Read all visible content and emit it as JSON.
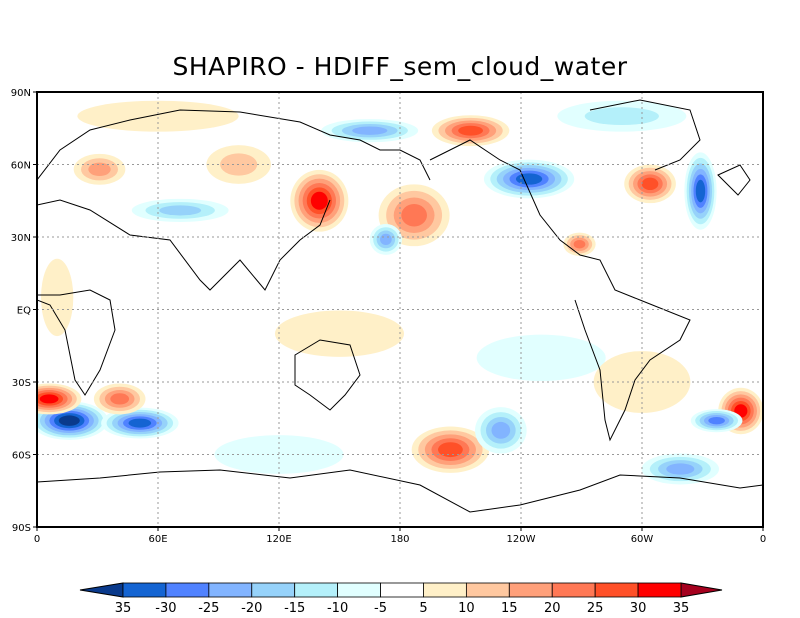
{
  "title": "SHAPIRO - HDIFF_sem_cloud_water",
  "map": {
    "projection": "latlon",
    "lon_range": [
      0,
      360
    ],
    "lat_range": [
      -90,
      90
    ],
    "grid": true,
    "y_ticks": [
      "90N",
      "60N",
      "30N",
      "EQ",
      "30S",
      "60S",
      "90S"
    ],
    "x_ticks": [
      "0",
      "60E",
      "120E",
      "180",
      "120W",
      "60W",
      "0"
    ],
    "features": [
      {
        "lon": 140,
        "lat": 45,
        "rlon": 9,
        "rlat": 8,
        "value": 32
      },
      {
        "lon": 187,
        "lat": 39,
        "rlon": 11,
        "rlat": 8,
        "value": 22
      },
      {
        "lon": 244,
        "lat": 54,
        "rlon": 14,
        "rlat": 5,
        "value": -33
      },
      {
        "lon": 329,
        "lat": 49,
        "rlon": 5,
        "rlat": 10,
        "value": -32
      },
      {
        "lon": 304,
        "lat": 52,
        "rlon": 8,
        "rlat": 5,
        "value": 26
      },
      {
        "lon": 165,
        "lat": 74,
        "rlon": 15,
        "rlat": 3,
        "value": -22
      },
      {
        "lon": 215,
        "lat": 74,
        "rlon": 12,
        "rlat": 4,
        "value": 26
      },
      {
        "lon": 16,
        "lat": -46,
        "rlon": 12,
        "rlat": 5,
        "value": -36
      },
      {
        "lon": 6,
        "lat": -37,
        "rlon": 10,
        "rlat": 4,
        "value": 31
      },
      {
        "lon": 51,
        "lat": -47,
        "rlon": 12,
        "rlat": 4,
        "value": -32
      },
      {
        "lon": 41,
        "lat": -37,
        "rlon": 8,
        "rlat": 4,
        "value": 21
      },
      {
        "lon": 205,
        "lat": -58,
        "rlon": 12,
        "rlat": 6,
        "value": 26
      },
      {
        "lon": 230,
        "lat": -50,
        "rlon": 8,
        "rlat": 6,
        "value": -21
      },
      {
        "lon": 349,
        "lat": -42,
        "rlon": 7,
        "rlat": 6,
        "value": 31
      },
      {
        "lon": 337,
        "lat": -46,
        "rlon": 8,
        "rlat": 3,
        "value": -26
      },
      {
        "lon": 319,
        "lat": -66,
        "rlon": 12,
        "rlat": 4,
        "value": -21
      },
      {
        "lon": 269,
        "lat": 27,
        "rlon": 5,
        "rlat": 3,
        "value": 22
      },
      {
        "lon": 173,
        "lat": 29,
        "rlon": 5,
        "rlat": 4,
        "value": -22
      },
      {
        "lon": 71,
        "lat": 41,
        "rlon": 15,
        "rlat": 3,
        "value": -16
      },
      {
        "lon": 31,
        "lat": 58,
        "rlon": 8,
        "rlat": 4,
        "value": 16
      },
      {
        "lon": 100,
        "lat": 60,
        "rlon": 10,
        "rlat": 5,
        "value": 12
      },
      {
        "lon": 60,
        "lat": 80,
        "rlon": 25,
        "rlat": 4,
        "value": 8
      },
      {
        "lon": 290,
        "lat": 80,
        "rlon": 20,
        "rlat": 4,
        "value": -12
      },
      {
        "lon": 150,
        "lat": -10,
        "rlon": 20,
        "rlat": 6,
        "value": 8
      },
      {
        "lon": 250,
        "lat": -20,
        "rlon": 20,
        "rlat": 6,
        "value": -8
      },
      {
        "lon": 300,
        "lat": -30,
        "rlon": 15,
        "rlat": 8,
        "value": 8
      },
      {
        "lon": 120,
        "lat": -60,
        "rlon": 20,
        "rlat": 5,
        "value": -9
      },
      {
        "lon": 10,
        "lat": 5,
        "rlon": 5,
        "rlat": 10,
        "value": 9
      }
    ]
  },
  "colorbar": {
    "labels": [
      "35",
      "-30",
      "-25",
      "-20",
      "-15",
      "-10",
      "-5",
      "5",
      "10",
      "15",
      "20",
      "25",
      "30",
      "35"
    ],
    "colors": [
      "#0a3a8c",
      "#1464d2",
      "#5082ff",
      "#82b4ff",
      "#96d2fa",
      "#b4f0fa",
      "#e1ffff",
      "#ffffff",
      "#fff0c8",
      "#ffc8a0",
      "#ffa07a",
      "#ff7855",
      "#ff5028",
      "#ff0000",
      "#a5001e"
    ]
  }
}
